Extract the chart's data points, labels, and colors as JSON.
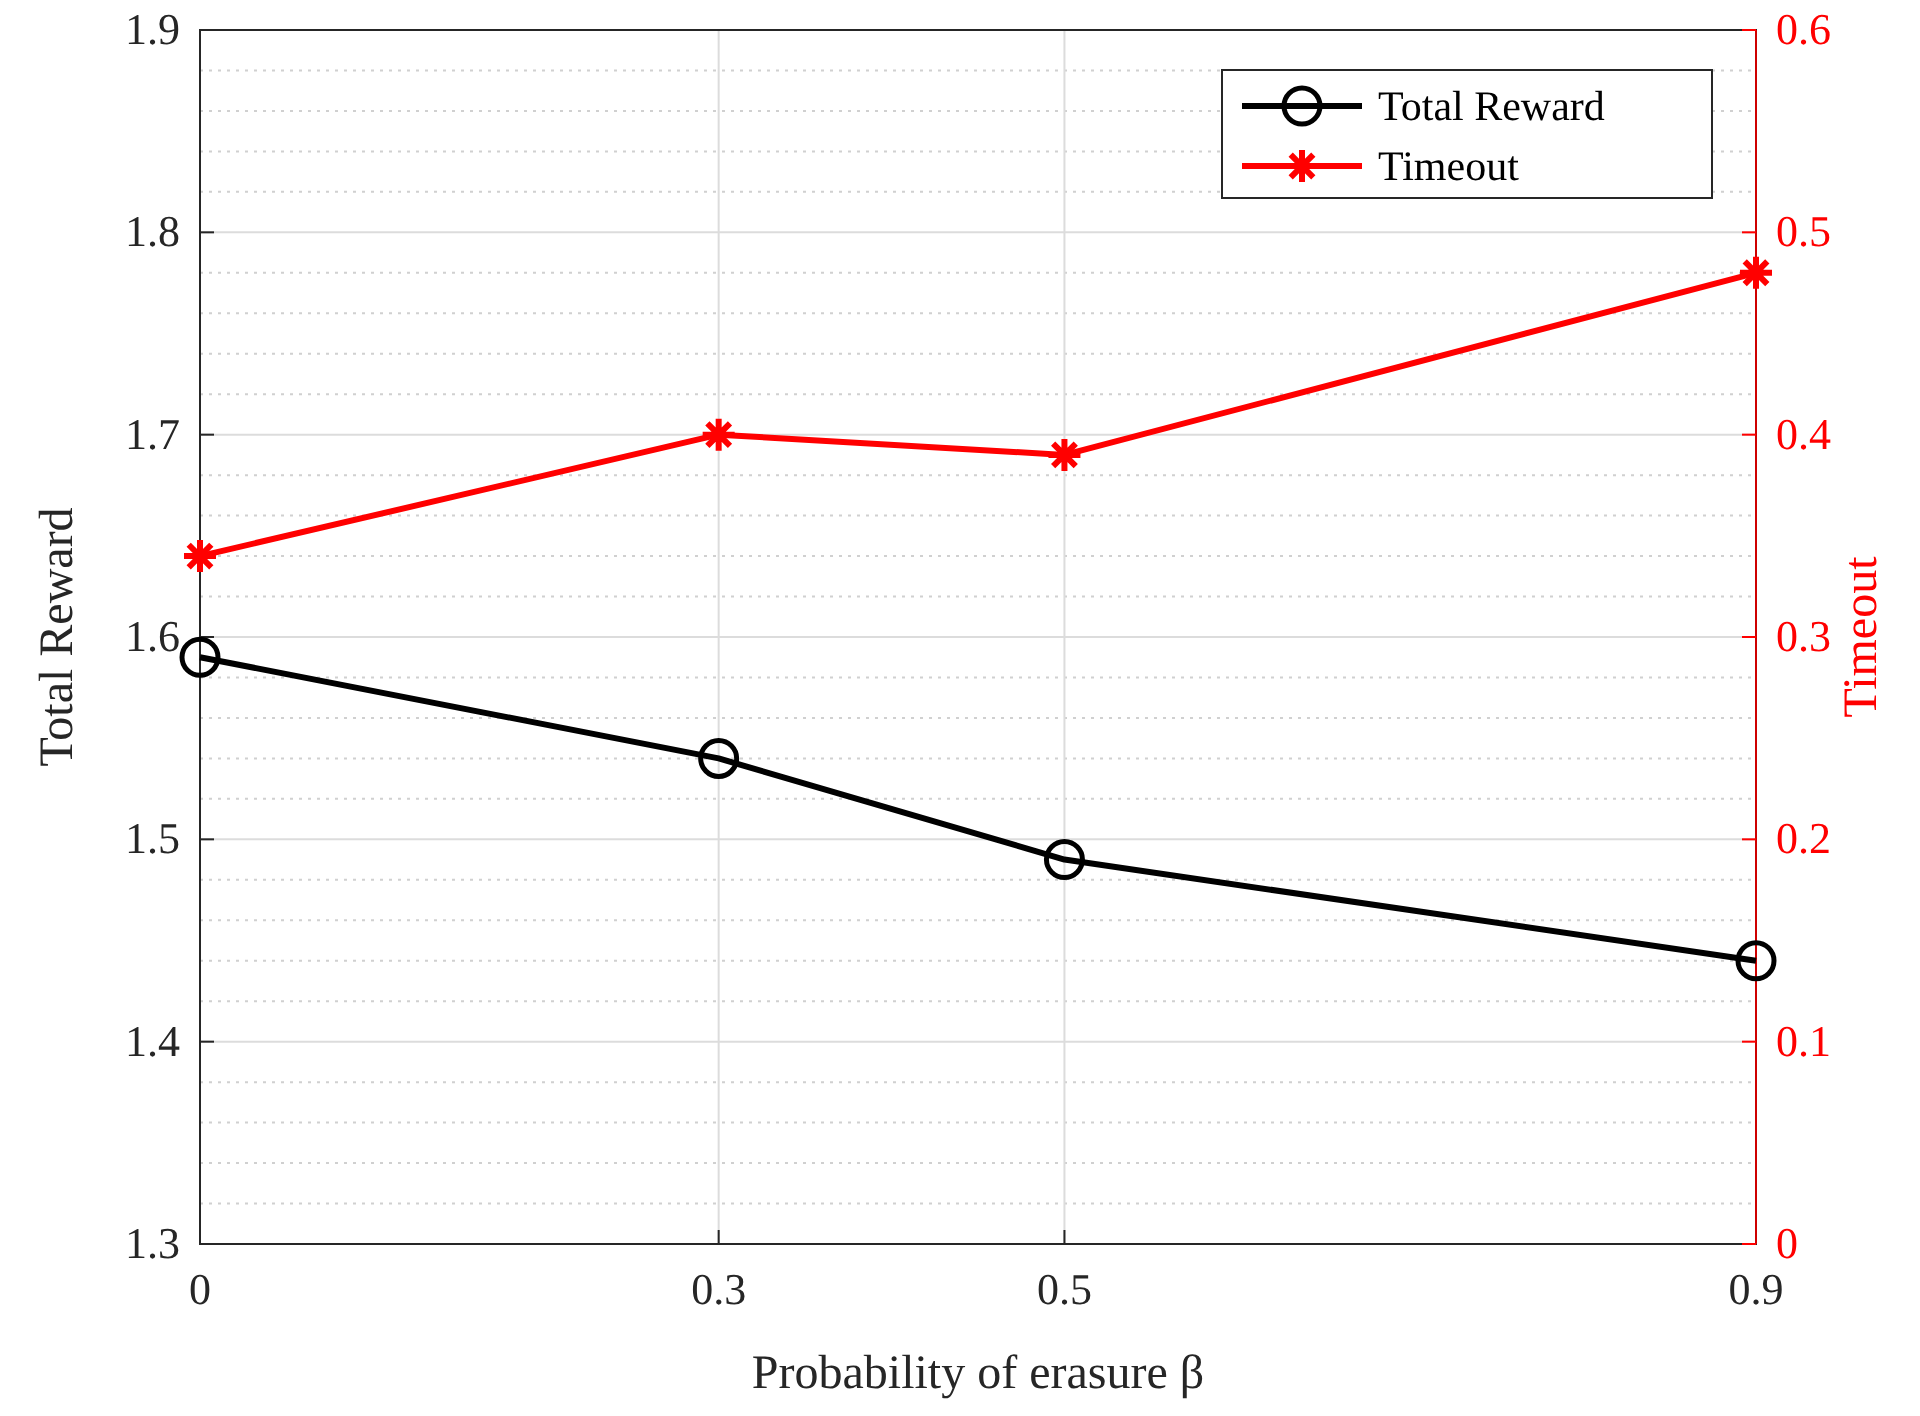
{
  "chart_data": {
    "type": "line",
    "xlabel": "Probability of erasure β",
    "ylabel": "Total Reward",
    "y2label": "Timeout",
    "x": [
      0,
      0.3,
      0.5,
      0.9
    ],
    "xlim": [
      0,
      0.9
    ],
    "xticks": [
      0,
      0.3,
      0.5,
      0.9
    ],
    "ylim": [
      1.3,
      1.9
    ],
    "yticks": [
      1.3,
      1.4,
      1.5,
      1.6,
      1.7,
      1.8,
      1.9
    ],
    "y2lim": [
      0,
      0.6
    ],
    "y2ticks": [
      0,
      0.1,
      0.2,
      0.3,
      0.4,
      0.5,
      0.6
    ],
    "grid": true,
    "legend": "top right",
    "line_style": "solid",
    "series": [
      {
        "name": "Total Reward",
        "color": "#000000",
        "values": [
          1.59,
          1.54,
          1.49,
          1.44
        ],
        "marker": "circle"
      },
      {
        "name": "Timeout",
        "color": "#ff0000",
        "values": [
          0.34,
          0.4,
          0.39,
          0.48
        ],
        "marker": "cross",
        "axis": "y2"
      }
    ]
  }
}
